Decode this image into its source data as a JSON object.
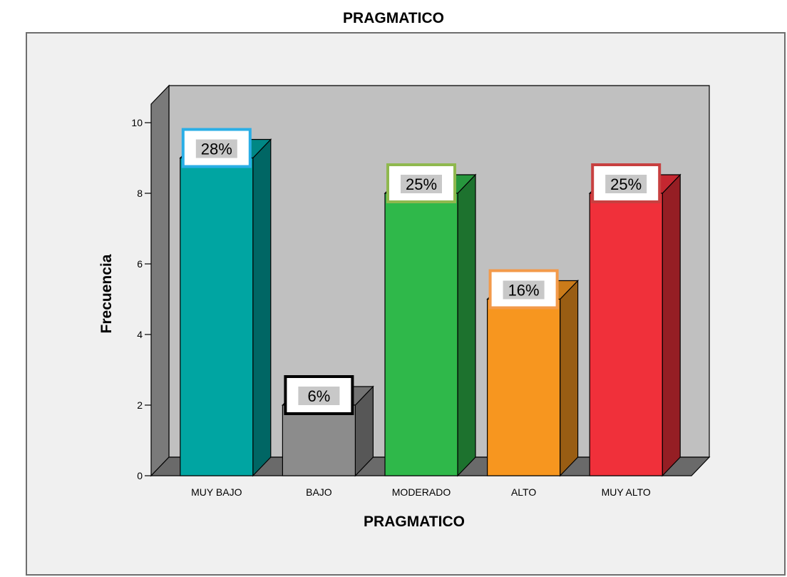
{
  "chart_data": {
    "type": "bar",
    "title": "PRAGMATICO",
    "xlabel": "PRAGMATICO",
    "ylabel": "Frecuencia",
    "ylim": [
      0,
      10
    ],
    "yticks": [
      0,
      2,
      4,
      6,
      8,
      10
    ],
    "grid": false,
    "three_d": true,
    "categories": [
      "MUY BAJO",
      "BAJO",
      "MODERADO",
      "ALTO",
      "MUY ALTO"
    ],
    "values": [
      9,
      2,
      8,
      5,
      8
    ],
    "percent_labels": [
      "28%",
      "6%",
      "25%",
      "16%",
      "25%"
    ],
    "colors": {
      "bars": [
        "#00a5a2",
        "#8c8c8c",
        "#2fb84a",
        "#f7961f",
        "#f0303a"
      ],
      "label_borders": [
        "#2aaee6",
        "#000000",
        "#8fb84e",
        "#f39a4a",
        "#c84040"
      ],
      "wall": "#c0c0c0",
      "side_wall": "#7a7a7a",
      "floor": "#6a6a6a"
    }
  }
}
